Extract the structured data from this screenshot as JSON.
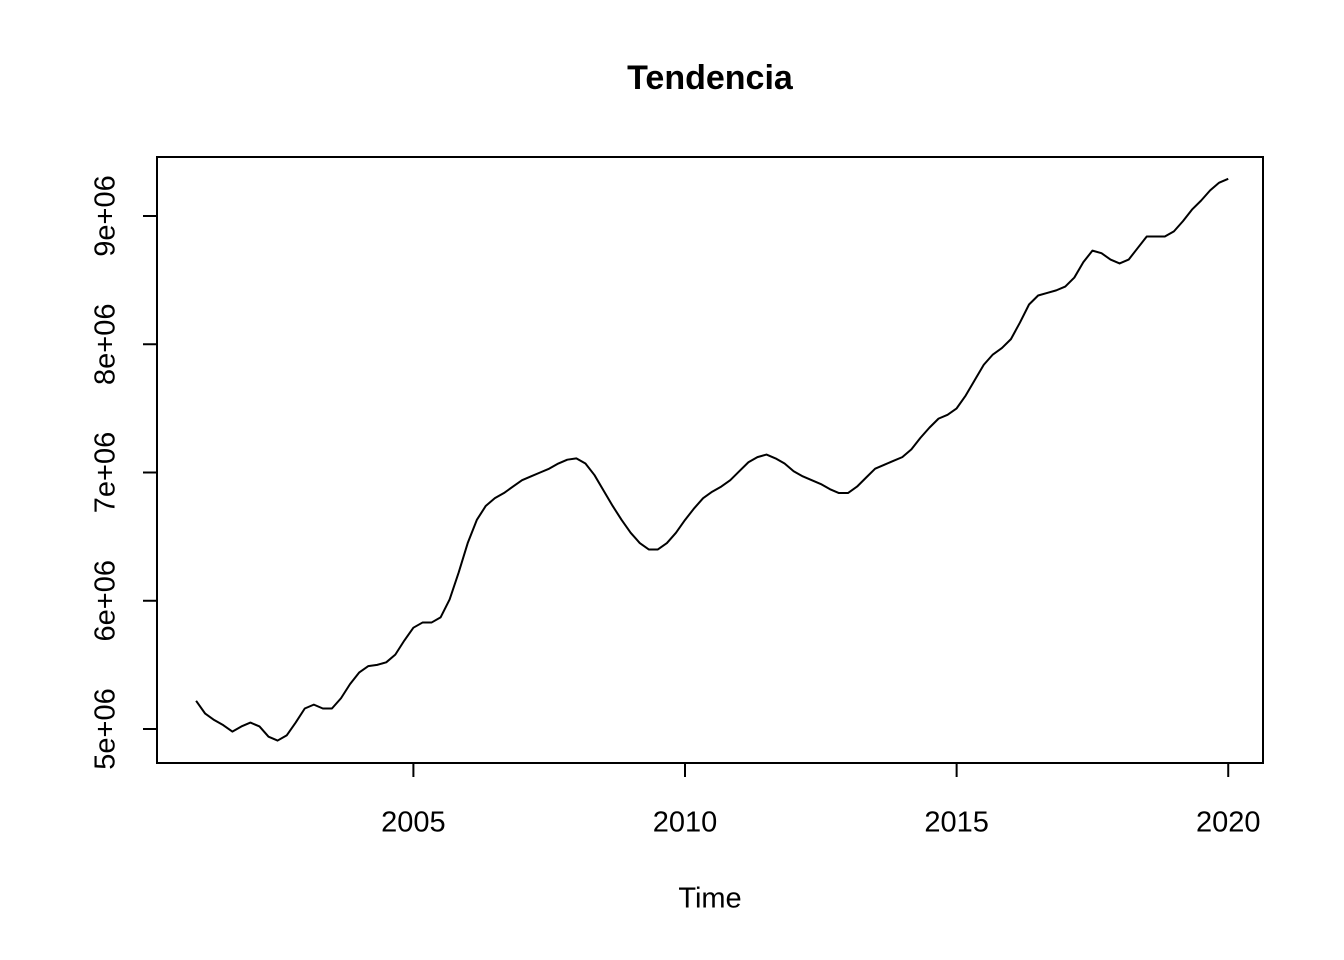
{
  "chart_data": {
    "type": "line",
    "title": "Tendencia",
    "x_label": "Time",
    "color": "#000000",
    "x": [
      2001,
      2001.167,
      2001.333,
      2001.5,
      2001.667,
      2001.833,
      2002,
      2002.167,
      2002.333,
      2002.5,
      2002.667,
      2002.833,
      2003,
      2003.167,
      2003.333,
      2003.5,
      2003.667,
      2003.833,
      2004,
      2004.167,
      2004.333,
      2004.5,
      2004.667,
      2004.833,
      2005,
      2005.167,
      2005.333,
      2005.5,
      2005.667,
      2005.833,
      2006,
      2006.167,
      2006.333,
      2006.5,
      2006.667,
      2006.833,
      2007,
      2007.167,
      2007.333,
      2007.5,
      2007.667,
      2007.833,
      2008,
      2008.167,
      2008.333,
      2008.5,
      2008.667,
      2008.833,
      2009,
      2009.167,
      2009.333,
      2009.5,
      2009.667,
      2009.833,
      2010,
      2010.167,
      2010.333,
      2010.5,
      2010.667,
      2010.833,
      2011,
      2011.167,
      2011.333,
      2011.5,
      2011.667,
      2011.833,
      2012,
      2012.167,
      2012.333,
      2012.5,
      2012.667,
      2012.833,
      2013,
      2013.167,
      2013.333,
      2013.5,
      2013.667,
      2013.833,
      2014,
      2014.167,
      2014.333,
      2014.5,
      2014.667,
      2014.833,
      2015,
      2015.167,
      2015.333,
      2015.5,
      2015.667,
      2015.833,
      2016,
      2016.167,
      2016.333,
      2016.5,
      2016.667,
      2016.833,
      2017,
      2017.167,
      2017.333,
      2017.5,
      2017.667,
      2017.833,
      2018,
      2018.167,
      2018.333,
      2018.5,
      2018.667,
      2018.833,
      2019,
      2019.167,
      2019.333,
      2019.5,
      2019.667,
      2019.833,
      2020
    ],
    "values": [
      5220000,
      5120000,
      5070000,
      5030000,
      4980000,
      5020000,
      5050000,
      5020000,
      4940000,
      4910000,
      4950000,
      5050000,
      5160000,
      5190000,
      5160000,
      5160000,
      5240000,
      5350000,
      5440000,
      5490000,
      5500000,
      5520000,
      5580000,
      5690000,
      5790000,
      5830000,
      5830000,
      5870000,
      6010000,
      6220000,
      6450000,
      6630000,
      6740000,
      6800000,
      6840000,
      6890000,
      6940000,
      6970000,
      7000000,
      7030000,
      7070000,
      7100000,
      7110000,
      7070000,
      6980000,
      6860000,
      6740000,
      6630000,
      6530000,
      6450000,
      6400000,
      6400000,
      6450000,
      6530000,
      6630000,
      6720000,
      6800000,
      6850000,
      6890000,
      6940000,
      7010000,
      7080000,
      7120000,
      7140000,
      7110000,
      7070000,
      7010000,
      6970000,
      6940000,
      6910000,
      6870000,
      6840000,
      6840000,
      6890000,
      6960000,
      7030000,
      7060000,
      7090000,
      7120000,
      7180000,
      7270000,
      7350000,
      7420000,
      7450000,
      7500000,
      7600000,
      7720000,
      7840000,
      7920000,
      7970000,
      8040000,
      8170000,
      8310000,
      8380000,
      8400000,
      8420000,
      8450000,
      8520000,
      8640000,
      8730000,
      8710000,
      8660000,
      8630000,
      8660000,
      8750000,
      8840000,
      8840000,
      8840000,
      8880000,
      8960000,
      9050000,
      9120000,
      9200000,
      9260000,
      9290000
    ],
    "xlim": [
      2000.28,
      2020.64
    ],
    "ylim": [
      4735000,
      9460000
    ],
    "xticks": [
      2005,
      2010,
      2015,
      2020
    ],
    "yticks": [
      {
        "value": 5000000,
        "label": "5e+06"
      },
      {
        "value": 6000000,
        "label": "6e+06"
      },
      {
        "value": 7000000,
        "label": "7e+06"
      },
      {
        "value": 8000000,
        "label": "8e+06"
      },
      {
        "value": 9000000,
        "label": "9e+06"
      }
    ]
  }
}
